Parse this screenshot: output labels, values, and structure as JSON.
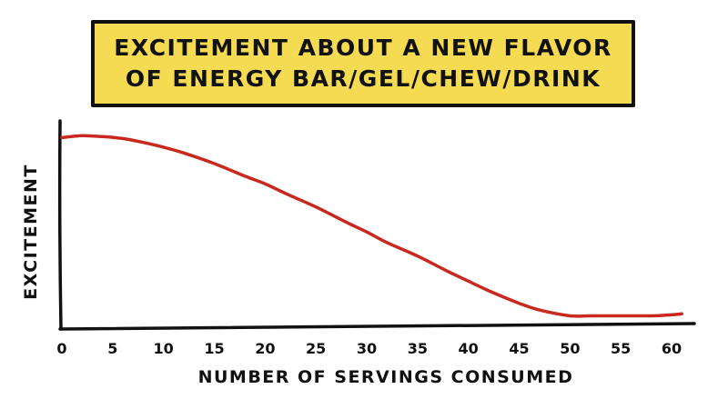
{
  "chart_data": {
    "type": "line",
    "title_lines": [
      "EXCITEMENT ABOUT A NEW FLAVOR",
      "OF ENERGY BAR/GEL/CHEW/DRINK"
    ],
    "xlabel": "NUMBER OF SERVINGS CONSUMED",
    "ylabel": "EXCITEMENT",
    "x_ticks": [
      0,
      5,
      10,
      15,
      20,
      25,
      30,
      35,
      40,
      45,
      50,
      55,
      60
    ],
    "xlim": [
      0,
      62
    ],
    "ylim": [
      0,
      100
    ],
    "grid": false,
    "line_color": "#c8281e",
    "series": [
      {
        "x": [
          0,
          2,
          4,
          6,
          8,
          10,
          12,
          15,
          18,
          20,
          22,
          25,
          28,
          30,
          32,
          35,
          38,
          40,
          42,
          45,
          47,
          50,
          52,
          55,
          58,
          60,
          61
        ],
        "y": [
          97,
          98,
          97.5,
          96.5,
          94.5,
          92,
          89,
          83.5,
          77,
          73,
          68,
          61,
          53,
          48,
          42.5,
          35.5,
          27.5,
          22.5,
          17.5,
          11,
          7.5,
          4.5,
          4.5,
          4.5,
          4.5,
          5,
          5.5
        ]
      }
    ]
  }
}
